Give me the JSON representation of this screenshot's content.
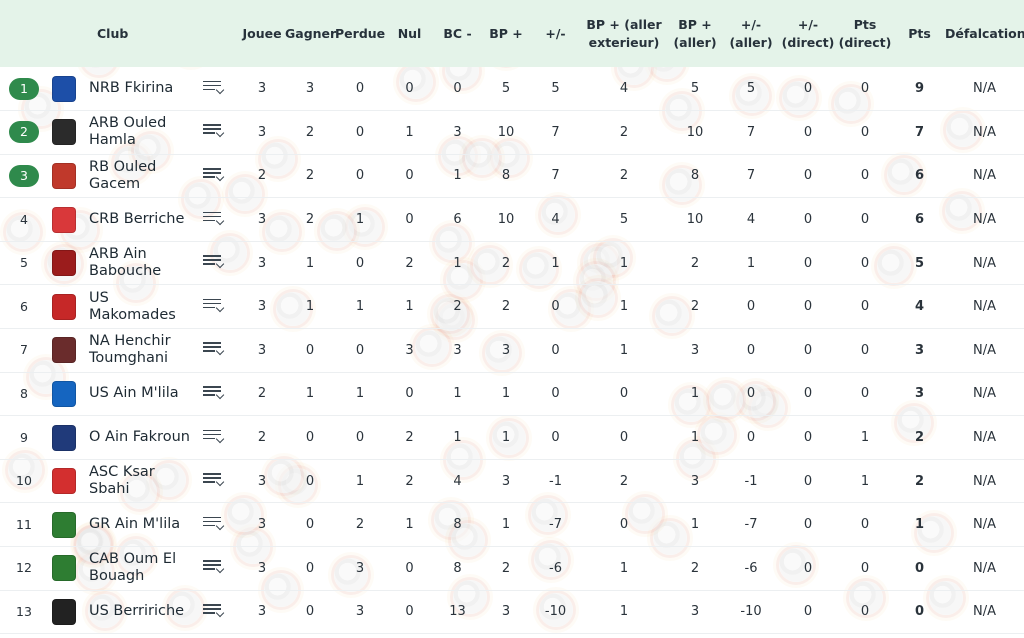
{
  "headers": {
    "club": "Club",
    "joue": "Jouee",
    "gagner": "Gagner",
    "perdue": "Perdue",
    "nul": "Nul",
    "bc": "BC -",
    "bp": "BP +",
    "diff": "+/-",
    "bp_ext": "BP + (aller exterieur)",
    "bp_aller": "BP + (aller)",
    "diff_aller": "+/- (aller)",
    "diff_direct": "+/- (direct)",
    "pts_direct": "Pts (direct)",
    "pts": "Pts",
    "defalcation": "Défalcation"
  },
  "colors": {
    "accent": "#2f8a4c",
    "header_bg": "#e4f3e9"
  },
  "rows": [
    {
      "rank": "1",
      "name": "NRB Fkirina",
      "logo": "#1d4fa8",
      "j": "3",
      "g": "3",
      "p": "0",
      "n": "0",
      "bc": "0",
      "bp": "5",
      "d": "5",
      "bpe": "4",
      "bpa": "5",
      "da": "5",
      "dd": "0",
      "ptsd": "0",
      "pts": "9",
      "def": "N/A"
    },
    {
      "rank": "2",
      "name": "ARB Ouled Hamla",
      "logo": "#2b2b2b",
      "j": "3",
      "g": "2",
      "p": "0",
      "n": "1",
      "bc": "3",
      "bp": "10",
      "d": "7",
      "bpe": "2",
      "bpa": "10",
      "da": "7",
      "dd": "0",
      "ptsd": "0",
      "pts": "7",
      "def": "N/A"
    },
    {
      "rank": "3",
      "name": "RB Ouled Gacem",
      "logo": "#c0392b",
      "j": "2",
      "g": "2",
      "p": "0",
      "n": "0",
      "bc": "1",
      "bp": "8",
      "d": "7",
      "bpe": "2",
      "bpa": "8",
      "da": "7",
      "dd": "0",
      "ptsd": "0",
      "pts": "6",
      "def": "N/A"
    },
    {
      "rank": "4",
      "name": "CRB Berriche",
      "logo": "#d9383a",
      "j": "3",
      "g": "2",
      "p": "1",
      "n": "0",
      "bc": "6",
      "bp": "10",
      "d": "4",
      "bpe": "5",
      "bpa": "10",
      "da": "4",
      "dd": "0",
      "ptsd": "0",
      "pts": "6",
      "def": "N/A"
    },
    {
      "rank": "5",
      "name": "ARB Ain Babouche",
      "logo": "#9b1c1c",
      "j": "3",
      "g": "1",
      "p": "0",
      "n": "2",
      "bc": "1",
      "bp": "2",
      "d": "1",
      "bpe": "1",
      "bpa": "2",
      "da": "1",
      "dd": "0",
      "ptsd": "0",
      "pts": "5",
      "def": "N/A"
    },
    {
      "rank": "6",
      "name": "US Makomades",
      "logo": "#c62828",
      "j": "3",
      "g": "1",
      "p": "1",
      "n": "1",
      "bc": "2",
      "bp": "2",
      "d": "0",
      "bpe": "1",
      "bpa": "2",
      "da": "0",
      "dd": "0",
      "ptsd": "0",
      "pts": "4",
      "def": "N/A"
    },
    {
      "rank": "7",
      "name": "NA Henchir Toumghani",
      "logo": "#6a2c2c",
      "j": "3",
      "g": "0",
      "p": "0",
      "n": "3",
      "bc": "3",
      "bp": "3",
      "d": "0",
      "bpe": "1",
      "bpa": "3",
      "da": "0",
      "dd": "0",
      "ptsd": "0",
      "pts": "3",
      "def": "N/A"
    },
    {
      "rank": "8",
      "name": "US Ain M'lila",
      "logo": "#1565c0",
      "j": "2",
      "g": "1",
      "p": "1",
      "n": "0",
      "bc": "1",
      "bp": "1",
      "d": "0",
      "bpe": "0",
      "bpa": "1",
      "da": "0",
      "dd": "0",
      "ptsd": "0",
      "pts": "3",
      "def": "N/A"
    },
    {
      "rank": "9",
      "name": "O Ain Fakroun",
      "logo": "#203a7a",
      "j": "2",
      "g": "0",
      "p": "0",
      "n": "2",
      "bc": "1",
      "bp": "1",
      "d": "0",
      "bpe": "0",
      "bpa": "1",
      "da": "0",
      "dd": "0",
      "ptsd": "1",
      "pts": "2",
      "def": "N/A"
    },
    {
      "rank": "10",
      "name": "ASC Ksar Sbahi",
      "logo": "#d32f2f",
      "j": "3",
      "g": "0",
      "p": "1",
      "n": "2",
      "bc": "4",
      "bp": "3",
      "d": "-1",
      "bpe": "2",
      "bpa": "3",
      "da": "-1",
      "dd": "0",
      "ptsd": "1",
      "pts": "2",
      "def": "N/A"
    },
    {
      "rank": "11",
      "name": "GR Ain M'lila",
      "logo": "#2e7d32",
      "j": "3",
      "g": "0",
      "p": "2",
      "n": "1",
      "bc": "8",
      "bp": "1",
      "d": "-7",
      "bpe": "0",
      "bpa": "1",
      "da": "-7",
      "dd": "0",
      "ptsd": "0",
      "pts": "1",
      "def": "N/A"
    },
    {
      "rank": "12",
      "name": "CAB Oum El Bouagh",
      "logo": "#2e7d32",
      "j": "3",
      "g": "0",
      "p": "3",
      "n": "0",
      "bc": "8",
      "bp": "2",
      "d": "-6",
      "bpe": "1",
      "bpa": "2",
      "da": "-6",
      "dd": "0",
      "ptsd": "0",
      "pts": "0",
      "def": "N/A"
    },
    {
      "rank": "13",
      "name": "US Berririche",
      "logo": "#222222",
      "j": "3",
      "g": "0",
      "p": "3",
      "n": "0",
      "bc": "13",
      "bp": "3",
      "d": "-10",
      "bpe": "1",
      "bpa": "3",
      "da": "-10",
      "dd": "0",
      "ptsd": "0",
      "pts": "0",
      "def": "N/A"
    }
  ]
}
